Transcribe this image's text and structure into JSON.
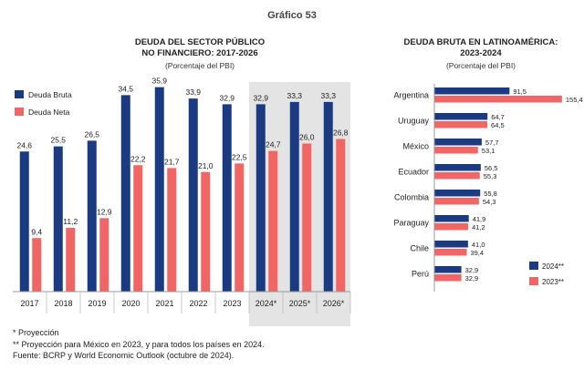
{
  "figure_title": "Gráfico 53",
  "chart_data": [
    {
      "type": "bar",
      "title": "DEUDA DEL SECTOR PÚBLICO\nNO FINANCIERO: 2017-2026",
      "subtitle": "(Porcentaje del PBI)",
      "categories": [
        "2017",
        "2018",
        "2019",
        "2020",
        "2021",
        "2022",
        "2023",
        "2024*",
        "2025*",
        "2026*"
      ],
      "series": [
        {
          "name": "Deuda Bruta",
          "color": "#1a3a82",
          "values": [
            24.6,
            25.5,
            26.5,
            34.5,
            35.9,
            33.9,
            32.9,
            32.9,
            33.3,
            33.3
          ],
          "labels": [
            "24,6",
            "25,5",
            "26,5",
            "34,5",
            "35,9",
            "33,9",
            "32,9",
            "32,9",
            "33,3",
            "33,3"
          ]
        },
        {
          "name": "Deuda Neta",
          "color": "#f26565",
          "values": [
            9.4,
            11.2,
            12.9,
            22.2,
            21.7,
            21.0,
            22.5,
            24.7,
            26.0,
            26.8
          ],
          "labels": [
            "9,4",
            "11,2",
            "12,9",
            "22,2",
            "21,7",
            "21,0",
            "22,5",
            "24,7",
            "26,0",
            "26,8"
          ]
        }
      ],
      "ylim": [
        0,
        40
      ],
      "grid": false,
      "legend_position": "top-left",
      "projection_shading": [
        "2024*",
        "2026*"
      ]
    },
    {
      "type": "bar",
      "orientation": "horizontal",
      "title": "DEUDA BRUTA EN LATINOAMÉRICA:\n2023-2024",
      "subtitle": "(Porcentaje del PBI)",
      "categories": [
        "Argentina",
        "Uruguay",
        "México",
        "Ecuador",
        "Colombia",
        "Paraguay",
        "Chile",
        "Perú"
      ],
      "series": [
        {
          "name": "2024**",
          "color": "#1a3a82",
          "values": [
            91.5,
            64.7,
            57.7,
            56.5,
            55.8,
            41.9,
            41.0,
            32.9
          ],
          "labels": [
            "91,5",
            "64,7",
            "57,7",
            "56,5",
            "55,8",
            "41,9",
            "41,0",
            "32,9"
          ]
        },
        {
          "name": "2023**",
          "color": "#f26565",
          "values": [
            155.4,
            64.5,
            53.1,
            55.3,
            54.3,
            41.2,
            39.4,
            32.9
          ],
          "labels": [
            "155,4",
            "64,5",
            "53,1",
            "55,3",
            "54,3",
            "41,2",
            "39,4",
            "32,9"
          ]
        }
      ],
      "xlim": [
        0,
        160
      ],
      "grid": false,
      "legend_position": "bottom-right"
    }
  ],
  "notes": [
    "* Proyección",
    "** Proyección para México en 2023, y para todos los países en 2024.",
    "Fuente: BCRP y World Economic Outlook (octubre de 2024)."
  ]
}
